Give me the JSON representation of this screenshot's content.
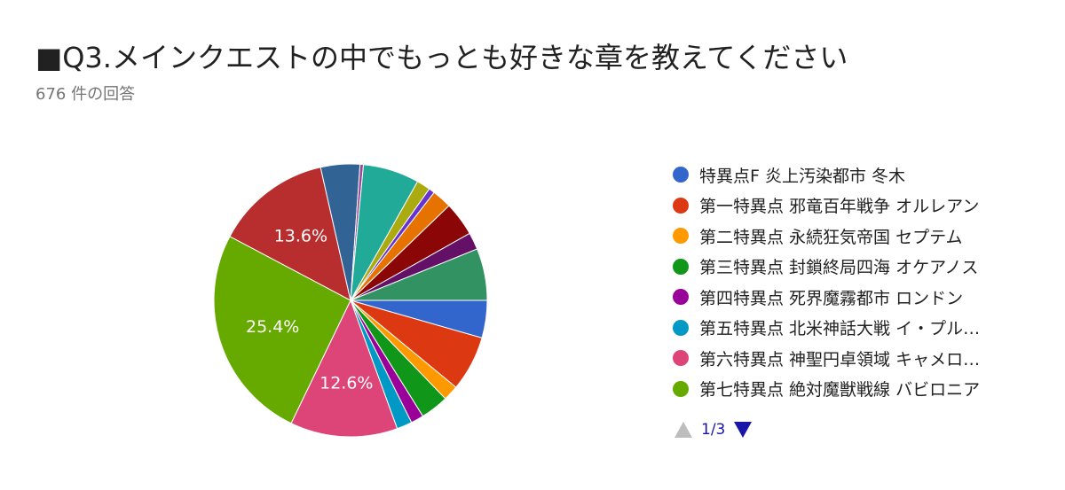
{
  "title": "■Q3.メインクエストの中でもっとも好きな章を教えてください",
  "subtitle": "676 件の回答",
  "pager": {
    "text": "1/3"
  },
  "chart_data": {
    "type": "pie",
    "title": "■Q3.メインクエストの中でもっとも好きな章を教えてください",
    "subtitle": "676 件の回答",
    "legend_position": "right",
    "slices": [
      {
        "label": "特異点F 炎上汚染都市 冬木",
        "value": 4.4,
        "color": "#3366cc",
        "show_label": false
      },
      {
        "label": "第一特異点 邪竜百年戦争 オルレアン",
        "value": 6.5,
        "color": "#dc3912",
        "show_label": false
      },
      {
        "label": "第二特異点 永続狂気帝国 セプテム",
        "value": 1.8,
        "color": "#ff9900",
        "show_label": false
      },
      {
        "label": "第三特異点 封鎖終局四海 オケアノス",
        "value": 3.3,
        "color": "#109618",
        "show_label": false
      },
      {
        "label": "第四特異点 死界魔霧都市 ロンドン",
        "value": 1.5,
        "color": "#990099",
        "show_label": false
      },
      {
        "label": "第五特異点 北米神話大戦 イ・プル…",
        "value": 1.8,
        "color": "#0099c6",
        "show_label": false
      },
      {
        "label": "第六特異点 神聖円卓領域 キャメロ…",
        "value": 12.6,
        "color": "#dd4477",
        "show_label": true,
        "display": "12.6%"
      },
      {
        "label": "第七特異点 絶対魔獣戦線 バビロニア",
        "value": 25.4,
        "color": "#66aa00",
        "show_label": true,
        "display": "25.4%"
      },
      {
        "label": "",
        "value": 13.6,
        "color": "#b82e2e",
        "show_label": true,
        "display": "13.6%"
      },
      {
        "label": "",
        "value": 4.6,
        "color": "#316395",
        "show_label": false
      },
      {
        "label": "",
        "value": 0.4,
        "color": "#994499",
        "show_label": false
      },
      {
        "label": "",
        "value": 6.6,
        "color": "#22aa99",
        "show_label": false
      },
      {
        "label": "",
        "value": 1.6,
        "color": "#aaaa11",
        "show_label": false
      },
      {
        "label": "",
        "value": 0.7,
        "color": "#6633cc",
        "show_label": false
      },
      {
        "label": "",
        "value": 2.3,
        "color": "#e67300",
        "show_label": false
      },
      {
        "label": "",
        "value": 4.0,
        "color": "#8b0707",
        "show_label": false
      },
      {
        "label": "",
        "value": 2.0,
        "color": "#651067",
        "show_label": false
      },
      {
        "label": "",
        "value": 6.1,
        "color": "#329262",
        "show_label": false
      }
    ]
  }
}
